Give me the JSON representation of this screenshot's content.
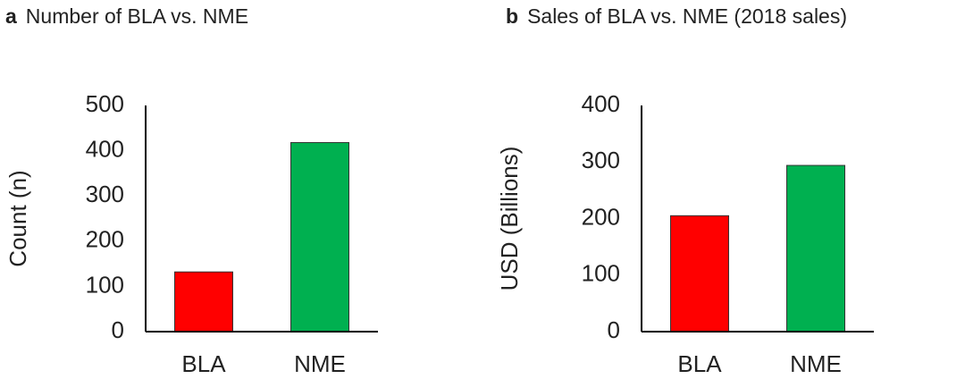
{
  "chart_data": [
    {
      "type": "bar",
      "panel": "a",
      "title": "Number of BLA vs. NME",
      "y_label": "Count (n)",
      "categories": [
        "BLA",
        "NME"
      ],
      "values": [
        132,
        418
      ],
      "colors": [
        "#ff0000",
        "#00b050"
      ],
      "ylim": [
        0,
        500
      ],
      "yticks": [
        0,
        100,
        200,
        300,
        400,
        500
      ],
      "grid": false
    },
    {
      "type": "bar",
      "panel": "b",
      "title": "Sales of BLA vs. NME (2018 sales)",
      "y_label": "USD (Billions)",
      "categories": [
        "BLA",
        "NME"
      ],
      "values": [
        205,
        294
      ],
      "colors": [
        "#ff0000",
        "#00b050"
      ],
      "ylim": [
        0,
        400
      ],
      "yticks": [
        0,
        100,
        200,
        300,
        400
      ],
      "grid": false
    }
  ]
}
